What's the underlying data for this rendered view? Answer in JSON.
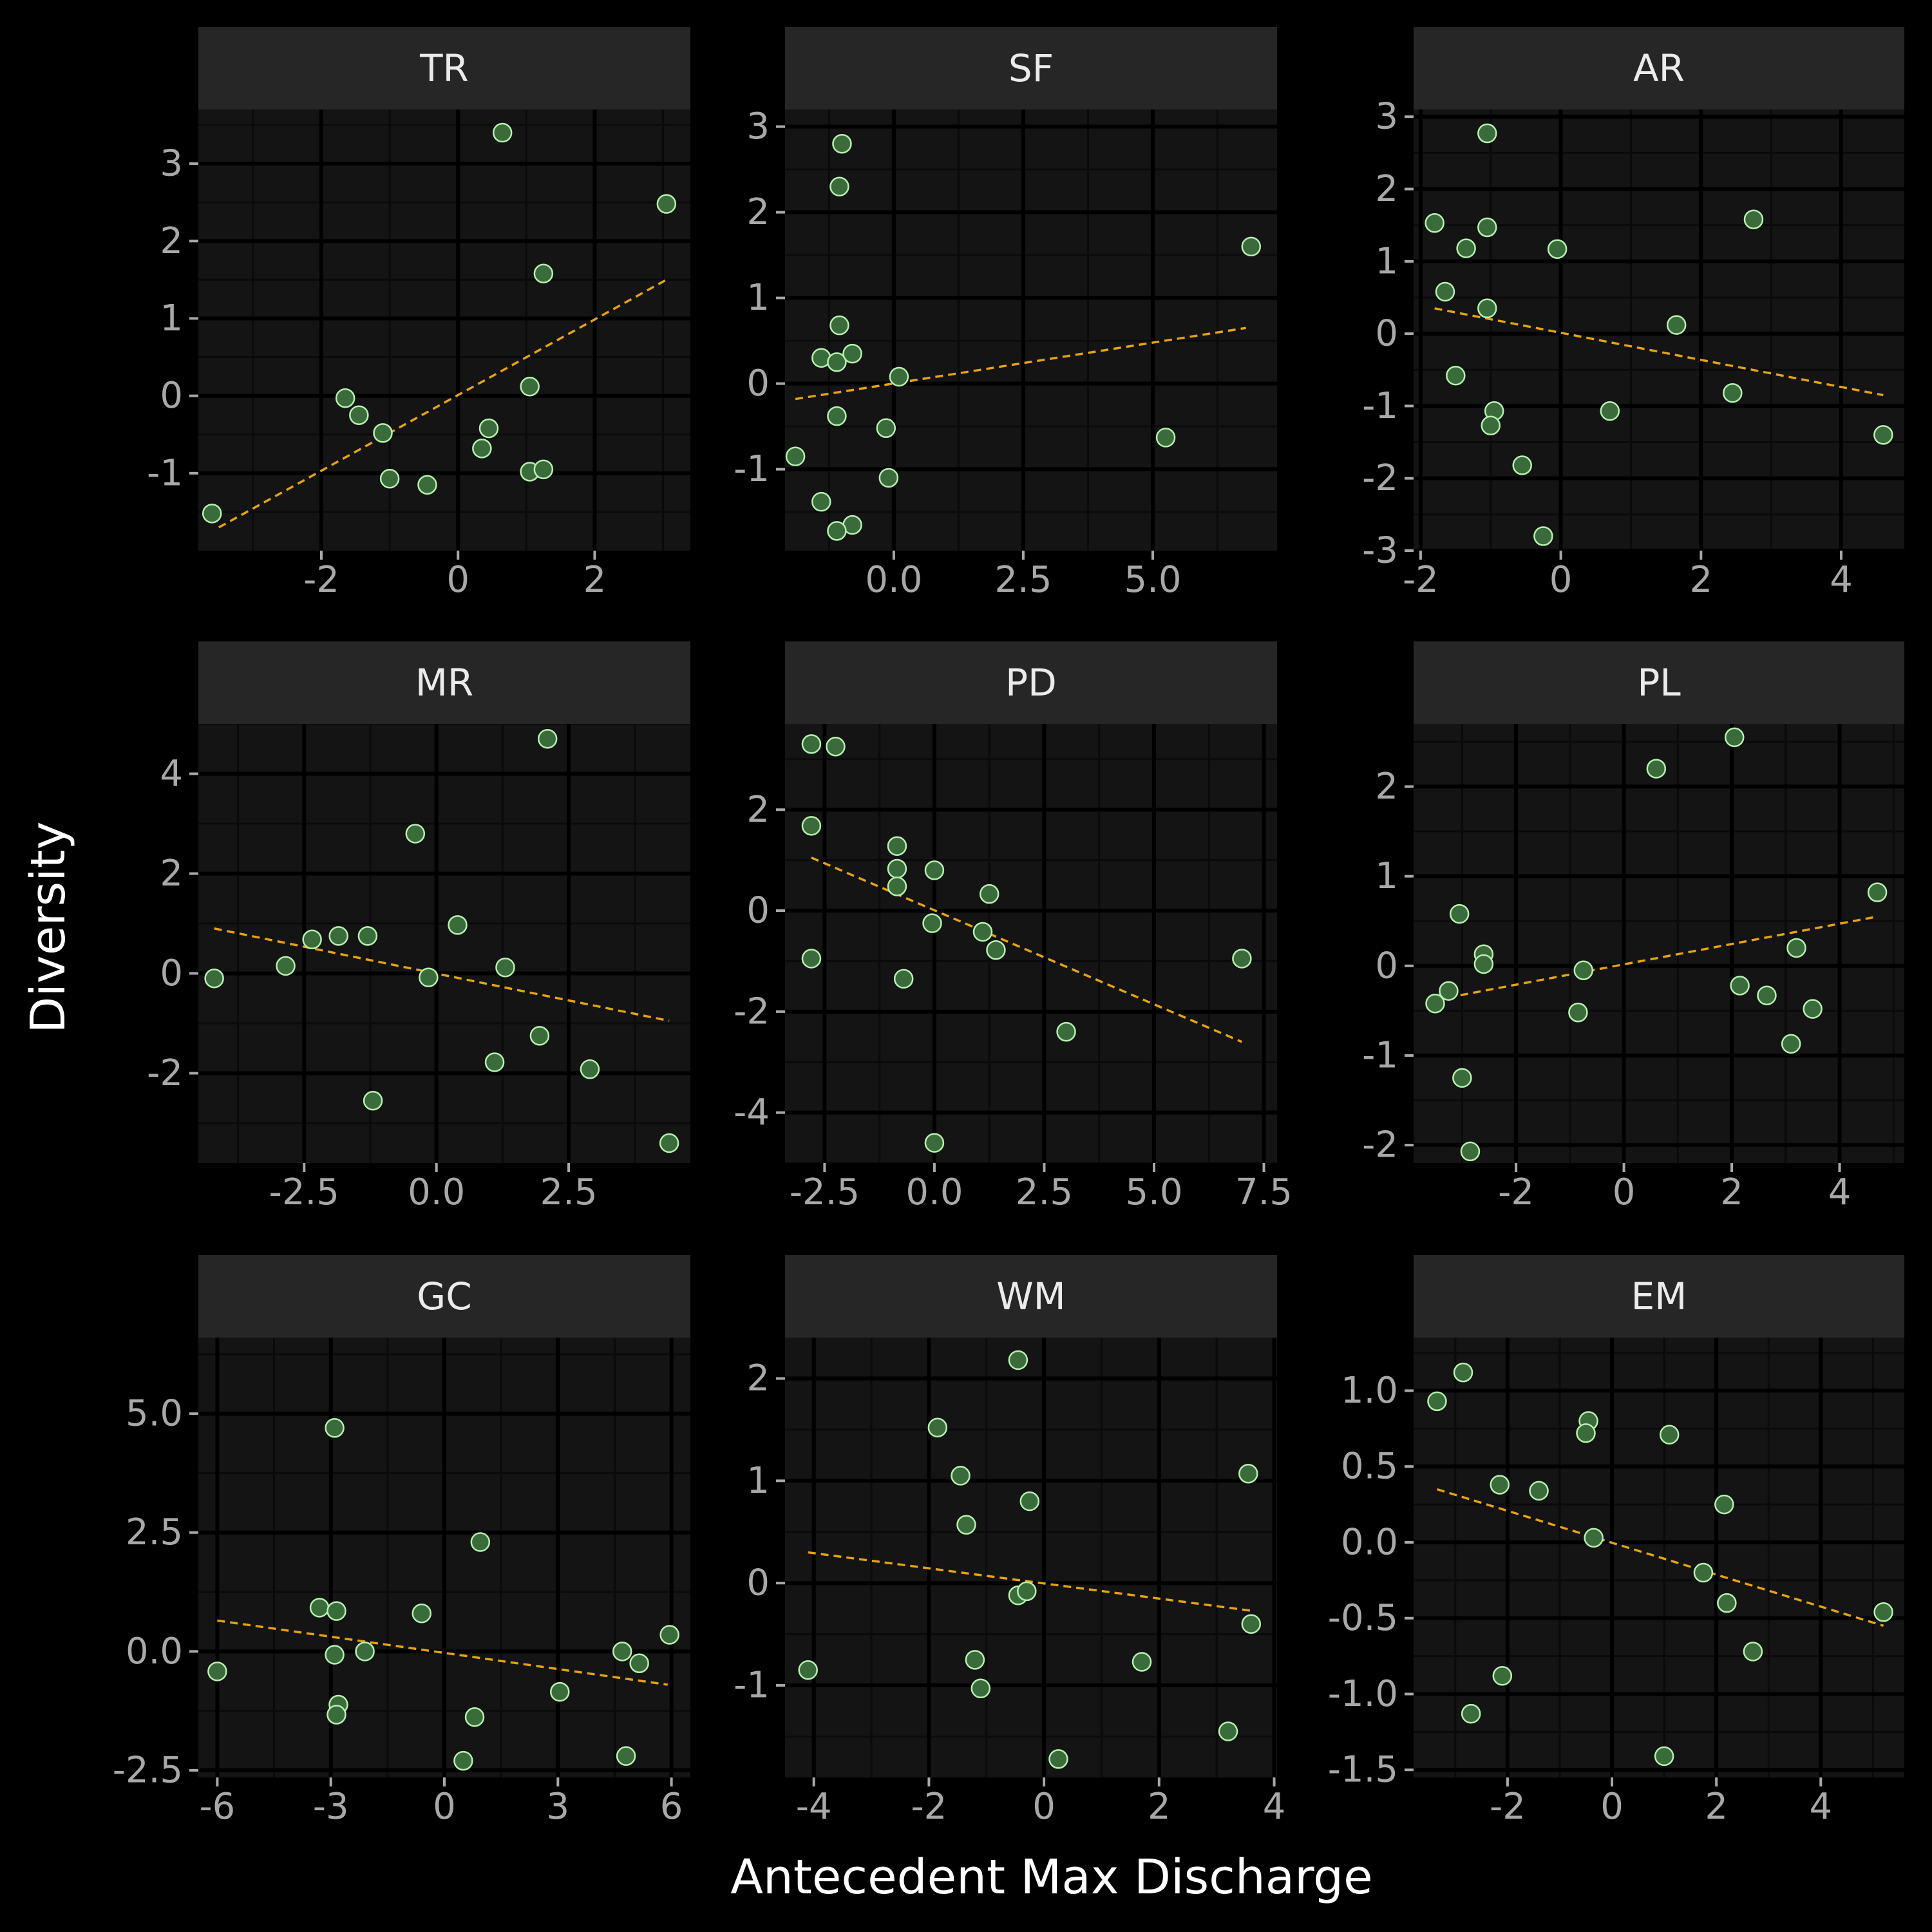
{
  "colors": {
    "background": "#000000",
    "panel": "#141414",
    "strip": "#262626",
    "grid_major": "#000000",
    "grid_minor": "#0a0a0a",
    "point_fill": "#3a6b3a",
    "point_stroke": "#b8f0b0",
    "trend_line": "#e6a40e",
    "tick_text": "#a8a8a8",
    "title_text": "#ffffff",
    "strip_text": "#ebebeb"
  },
  "chart_data": {
    "type": "scatter",
    "xlabel": "Antecedent Max Discharge",
    "ylabel": "Diversity",
    "trend": "linear fit (dashed)",
    "facets": [
      {
        "name": "TR",
        "xlim": [
          -3.8,
          3.4
        ],
        "ylim": [
          -2.0,
          3.7
        ],
        "xticks": [
          -2,
          0,
          2
        ],
        "xtick_labels": [
          "-2",
          "0",
          "2"
        ],
        "yticks": [
          -1,
          0,
          1,
          2,
          3
        ],
        "ytick_labels": [
          "-1",
          "0",
          "1",
          "2",
          "3"
        ],
        "fit": [
          [
            -3.5,
            -1.7
          ],
          [
            3.05,
            1.5
          ]
        ],
        "points": [
          [
            -3.6,
            -1.52
          ],
          [
            0.65,
            3.4
          ],
          [
            3.05,
            2.48
          ],
          [
            1.25,
            1.58
          ],
          [
            -1.65,
            -0.03
          ],
          [
            -1.45,
            -0.25
          ],
          [
            -1.1,
            -0.48
          ],
          [
            -1.0,
            -1.07
          ],
          [
            -0.45,
            -1.15
          ],
          [
            0.45,
            -0.42
          ],
          [
            0.35,
            -0.68
          ],
          [
            1.05,
            0.12
          ],
          [
            1.05,
            -0.98
          ],
          [
            1.25,
            -0.95
          ]
        ]
      },
      {
        "name": "SF",
        "xlim": [
          -2.1,
          7.4
        ],
        "ylim": [
          -1.95,
          3.2
        ],
        "xticks": [
          0,
          2.5,
          5
        ],
        "xtick_labels": [
          "0.0",
          "2.5",
          "5.0"
        ],
        "yticks": [
          -1,
          0,
          1,
          2,
          3
        ],
        "ytick_labels": [
          "-1",
          "0",
          "1",
          "2",
          "3"
        ],
        "fit": [
          [
            -1.9,
            -0.18
          ],
          [
            6.8,
            0.65
          ]
        ],
        "points": [
          [
            -1.0,
            2.8
          ],
          [
            -1.05,
            2.3
          ],
          [
            -1.9,
            -0.85
          ],
          [
            -1.4,
            0.3
          ],
          [
            -1.05,
            0.68
          ],
          [
            -1.1,
            0.25
          ],
          [
            -0.8,
            0.35
          ],
          [
            -1.1,
            -0.38
          ],
          [
            0.1,
            0.08
          ],
          [
            -0.15,
            -0.52
          ],
          [
            -0.1,
            -1.1
          ],
          [
            -1.4,
            -1.38
          ],
          [
            -0.8,
            -1.65
          ],
          [
            -1.1,
            -1.72
          ],
          [
            6.9,
            1.6
          ],
          [
            5.25,
            -0.63
          ]
        ]
      },
      {
        "name": "AR",
        "xlim": [
          -2.1,
          4.9
        ],
        "ylim": [
          -3.0,
          3.1
        ],
        "xticks": [
          -2,
          0,
          2,
          4
        ],
        "xtick_labels": [
          "-2",
          "0",
          "2",
          "4"
        ],
        "yticks": [
          -3,
          -2,
          -1,
          0,
          1,
          2,
          3
        ],
        "ytick_labels": [
          "-3",
          "-2",
          "-1",
          "0",
          "1",
          "2",
          "3"
        ],
        "fit": [
          [
            -1.8,
            0.35
          ],
          [
            4.6,
            -0.85
          ]
        ],
        "points": [
          [
            -1.05,
            2.77
          ],
          [
            -1.8,
            1.53
          ],
          [
            -1.05,
            1.47
          ],
          [
            -0.05,
            1.17
          ],
          [
            -1.35,
            1.18
          ],
          [
            -1.65,
            0.58
          ],
          [
            -1.05,
            0.35
          ],
          [
            -1.5,
            -0.58
          ],
          [
            -0.95,
            -1.07
          ],
          [
            -1.0,
            -1.27
          ],
          [
            -0.55,
            -1.82
          ],
          [
            -0.25,
            -2.8
          ],
          [
            0.7,
            -1.07
          ],
          [
            1.65,
            0.12
          ],
          [
            2.75,
            1.58
          ],
          [
            2.45,
            -0.82
          ],
          [
            4.6,
            -1.4
          ]
        ]
      },
      {
        "name": "MR",
        "xlim": [
          -4.5,
          4.8
        ],
        "ylim": [
          -3.8,
          5.0
        ],
        "xticks": [
          -2.5,
          0,
          2.5
        ],
        "xtick_labels": [
          "-2.5",
          "0.0",
          "2.5"
        ],
        "yticks": [
          -2,
          0,
          2,
          4
        ],
        "ytick_labels": [
          "-2",
          "0",
          "2",
          "4"
        ],
        "fit": [
          [
            -4.2,
            0.9
          ],
          [
            4.4,
            -0.95
          ]
        ],
        "points": [
          [
            -4.2,
            -0.1
          ],
          [
            2.1,
            4.7
          ],
          [
            -0.4,
            2.8
          ],
          [
            -2.85,
            0.15
          ],
          [
            -2.35,
            0.68
          ],
          [
            -1.85,
            0.75
          ],
          [
            -1.3,
            0.75
          ],
          [
            -0.15,
            -0.08
          ],
          [
            0.4,
            0.97
          ],
          [
            1.3,
            0.12
          ],
          [
            1.1,
            -1.78
          ],
          [
            1.95,
            -1.25
          ],
          [
            2.9,
            -1.92
          ],
          [
            -1.2,
            -2.55
          ],
          [
            4.4,
            -3.4
          ]
        ]
      },
      {
        "name": "PD",
        "xlim": [
          -3.4,
          7.8
        ],
        "ylim": [
          -5.0,
          3.7
        ],
        "xticks": [
          -2.5,
          0,
          2.5,
          5,
          7.5
        ],
        "xtick_labels": [
          "-2.5",
          "0.0",
          "2.5",
          "5.0",
          "7.5"
        ],
        "yticks": [
          -4,
          -2,
          0,
          2
        ],
        "ytick_labels": [
          "-4",
          "-2",
          "0",
          "2"
        ],
        "fit": [
          [
            -2.8,
            1.05
          ],
          [
            7.0,
            -2.6
          ]
        ],
        "points": [
          [
            -2.8,
            3.3
          ],
          [
            -2.25,
            3.25
          ],
          [
            -2.8,
            1.68
          ],
          [
            -2.8,
            -0.95
          ],
          [
            -0.85,
            1.28
          ],
          [
            -0.85,
            0.83
          ],
          [
            -0.85,
            0.48
          ],
          [
            0.0,
            0.8
          ],
          [
            -0.05,
            -0.25
          ],
          [
            -0.7,
            -1.35
          ],
          [
            1.25,
            0.33
          ],
          [
            1.1,
            -0.42
          ],
          [
            1.4,
            -0.78
          ],
          [
            3.0,
            -2.4
          ],
          [
            0.0,
            -4.6
          ],
          [
            7.0,
            -0.95
          ]
        ]
      },
      {
        "name": "PL",
        "xlim": [
          -3.9,
          5.2
        ],
        "ylim": [
          -2.2,
          2.7
        ],
        "xticks": [
          -2,
          0,
          2,
          4
        ],
        "xtick_labels": [
          "-2",
          "0",
          "2",
          "4"
        ],
        "yticks": [
          -2,
          -1,
          0,
          1,
          2
        ],
        "ytick_labels": [
          "-2",
          "-1",
          "0",
          "1",
          "2"
        ],
        "fit": [
          [
            -3.5,
            -0.38
          ],
          [
            4.7,
            0.55
          ]
        ],
        "points": [
          [
            2.05,
            2.55
          ],
          [
            0.6,
            2.2
          ],
          [
            -3.05,
            0.58
          ],
          [
            -2.6,
            0.13
          ],
          [
            -2.6,
            0.02
          ],
          [
            -3.25,
            -0.28
          ],
          [
            -3.5,
            -0.42
          ],
          [
            -0.75,
            -0.05
          ],
          [
            -0.85,
            -0.52
          ],
          [
            -3.0,
            -1.25
          ],
          [
            -2.85,
            -2.07
          ],
          [
            2.15,
            -0.22
          ],
          [
            2.65,
            -0.33
          ],
          [
            3.2,
            0.2
          ],
          [
            3.5,
            -0.48
          ],
          [
            3.1,
            -0.87
          ],
          [
            4.7,
            0.82
          ]
        ]
      },
      {
        "name": "GC",
        "xlim": [
          -6.5,
          6.5
        ],
        "ylim": [
          -2.65,
          6.6
        ],
        "xticks": [
          -6,
          -3,
          0,
          3,
          6
        ],
        "xtick_labels": [
          "-6",
          "-3",
          "0",
          "3",
          "6"
        ],
        "yticks": [
          -2.5,
          0,
          2.5,
          5
        ],
        "ytick_labels": [
          "-2.5",
          "0.0",
          "2.5",
          "5.0"
        ],
        "fit": [
          [
            -6.0,
            0.65
          ],
          [
            5.9,
            -0.7
          ]
        ],
        "points": [
          [
            -6.0,
            -0.42
          ],
          [
            -2.9,
            4.7
          ],
          [
            -3.3,
            0.92
          ],
          [
            -2.85,
            0.85
          ],
          [
            -0.6,
            0.8
          ],
          [
            -2.9,
            -0.07
          ],
          [
            -2.1,
            0.0
          ],
          [
            -2.8,
            -1.12
          ],
          [
            -2.85,
            -1.33
          ],
          [
            0.95,
            2.3
          ],
          [
            0.8,
            -1.38
          ],
          [
            0.5,
            -2.3
          ],
          [
            3.05,
            -0.85
          ],
          [
            4.7,
            0.0
          ],
          [
            5.15,
            -0.25
          ],
          [
            5.95,
            0.35
          ],
          [
            4.8,
            -2.2
          ]
        ]
      },
      {
        "name": "WM",
        "xlim": [
          -4.5,
          4.05
        ],
        "ylim": [
          -1.9,
          2.4
        ],
        "xticks": [
          -4,
          -2,
          0,
          2,
          4
        ],
        "xtick_labels": [
          "-4",
          "-2",
          "0",
          "2",
          "4"
        ],
        "yticks": [
          -1,
          0,
          1,
          2
        ],
        "ytick_labels": [
          "-1",
          "0",
          "1",
          "2"
        ],
        "fit": [
          [
            -4.1,
            0.3
          ],
          [
            3.6,
            -0.27
          ]
        ],
        "points": [
          [
            -4.1,
            -0.85
          ],
          [
            -0.45,
            2.18
          ],
          [
            -1.85,
            1.52
          ],
          [
            -1.45,
            1.05
          ],
          [
            -1.35,
            0.57
          ],
          [
            -0.25,
            0.8
          ],
          [
            -0.45,
            -0.12
          ],
          [
            -0.3,
            -0.08
          ],
          [
            -1.2,
            -0.75
          ],
          [
            -1.1,
            -1.03
          ],
          [
            0.25,
            -1.72
          ],
          [
            1.7,
            -0.77
          ],
          [
            3.55,
            1.07
          ],
          [
            3.6,
            -0.4
          ],
          [
            3.2,
            -1.45
          ]
        ]
      },
      {
        "name": "EM",
        "xlim": [
          -3.8,
          5.6
        ],
        "ylim": [
          -1.55,
          1.35
        ],
        "xticks": [
          -2,
          0,
          2,
          4
        ],
        "xtick_labels": [
          "-2",
          "0",
          "2",
          "4"
        ],
        "yticks": [
          -1.5,
          -1.0,
          -0.5,
          0,
          0.5,
          1.0
        ],
        "ytick_labels": [
          "-1.5",
          "-1.0",
          "-0.5",
          "0.0",
          "0.5",
          "1.0"
        ],
        "fit": [
          [
            -3.35,
            0.35
          ],
          [
            5.2,
            -0.55
          ]
        ],
        "points": [
          [
            -3.35,
            0.93
          ],
          [
            -2.85,
            1.12
          ],
          [
            -0.45,
            0.8
          ],
          [
            -0.5,
            0.72
          ],
          [
            1.1,
            0.71
          ],
          [
            -2.15,
            0.38
          ],
          [
            -1.4,
            0.34
          ],
          [
            -0.35,
            0.03
          ],
          [
            2.15,
            0.25
          ],
          [
            1.75,
            -0.2
          ],
          [
            2.2,
            -0.4
          ],
          [
            2.7,
            -0.72
          ],
          [
            -2.1,
            -0.88
          ],
          [
            -2.7,
            -1.13
          ],
          [
            1.0,
            -1.41
          ],
          [
            5.2,
            -0.46
          ]
        ]
      }
    ]
  }
}
